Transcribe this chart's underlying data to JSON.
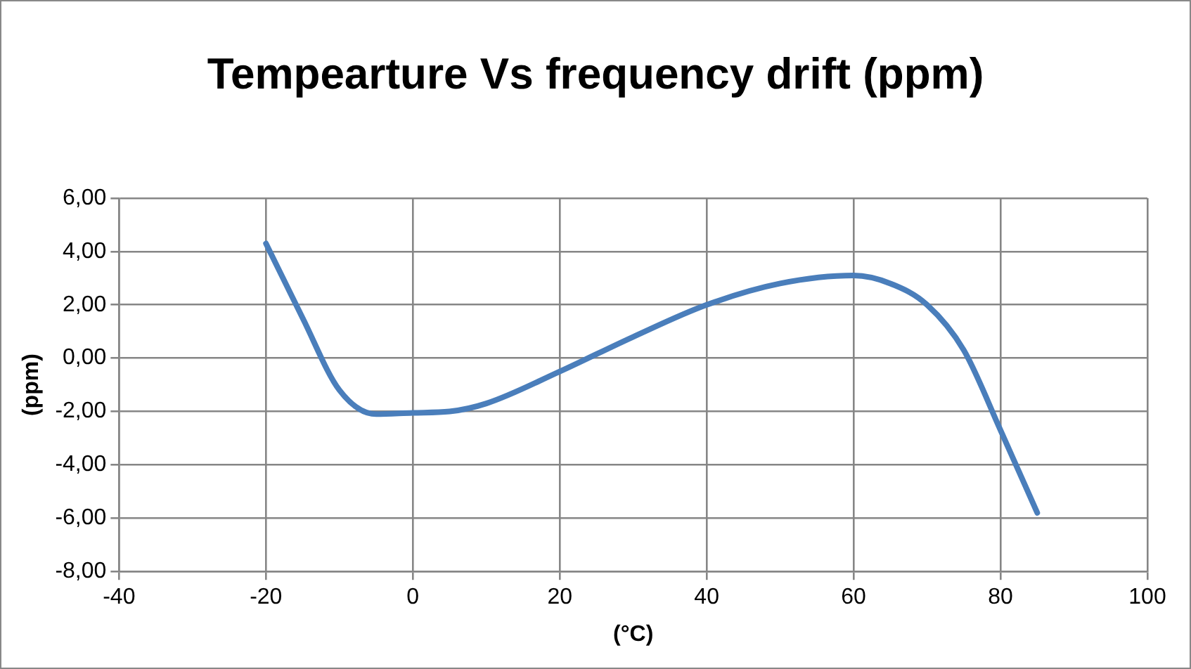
{
  "chart_data": {
    "type": "line",
    "title": "Tempearture Vs frequency drift (ppm)",
    "xlabel": "(°C)",
    "ylabel": "(ppm)",
    "x": [
      -20,
      -15,
      -10,
      -5,
      0,
      5,
      10,
      20,
      30,
      40,
      50,
      60,
      65,
      70,
      75,
      80,
      85
    ],
    "series": [
      {
        "color": "#4a7ebb",
        "values": [
          4.3,
          1.5,
          -1.2,
          -2.1,
          -2.05,
          -2.0,
          -1.7,
          -0.5,
          0.8,
          2.0,
          2.8,
          3.1,
          2.8,
          2.0,
          0.3,
          -2.7,
          -5.8
        ]
      }
    ],
    "xlim": [
      -40,
      100
    ],
    "xticks": [
      -40,
      -20,
      0,
      20,
      40,
      60,
      80,
      100
    ],
    "ylim": [
      -8,
      6
    ],
    "yticks": [
      {
        "value": -8,
        "label": "-8,00"
      },
      {
        "value": -6,
        "label": "-6,00"
      },
      {
        "value": -4,
        "label": "-4,00"
      },
      {
        "value": -2,
        "label": "-2,00"
      },
      {
        "value": 0,
        "label": "0,00"
      },
      {
        "value": 2,
        "label": "2,00"
      },
      {
        "value": 4,
        "label": "4,00"
      },
      {
        "value": 6,
        "label": "6,00"
      }
    ],
    "grid": true,
    "legend": false,
    "marker": "none",
    "line_style": "solid"
  }
}
